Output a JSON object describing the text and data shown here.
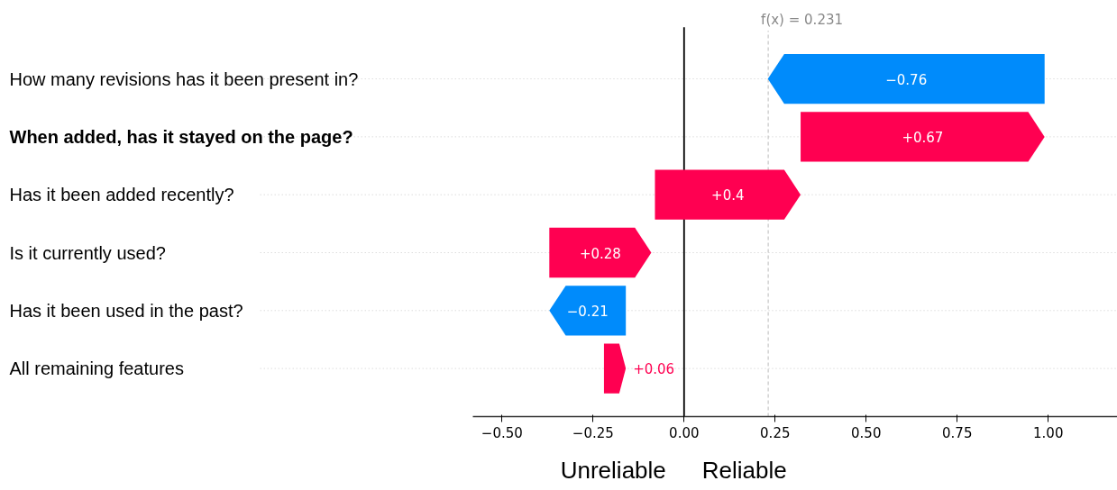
{
  "chart_data": {
    "type": "bar",
    "orientation": "horizontal",
    "categories": [
      "How many revisions has it been present in?",
      "When added, has it stayed on the page?",
      "Has it been added recently?",
      "Is it currently used?",
      "Has it been used in the past?",
      "All remaining features"
    ],
    "values": [
      -0.76,
      0.67,
      0.4,
      0.28,
      -0.21,
      0.06
    ],
    "base": [
      0.99,
      0.32,
      -0.08,
      -0.37,
      -0.16,
      -0.22
    ],
    "colors": [
      "#008bfb",
      "#ff0051",
      "#ff0051",
      "#ff0051",
      "#008bfb",
      "#ff0051"
    ],
    "value_labels": [
      "−0.76",
      "+0.67",
      "+0.4",
      "+0.28",
      "−0.21",
      "+0.06"
    ],
    "xlim": [
      -0.58,
      1.19
    ],
    "xticks": [
      {
        "value": -0.5,
        "label": "−0.50"
      },
      {
        "value": -0.25,
        "label": "−0.25"
      },
      {
        "value": 0,
        "label": "0.00"
      },
      {
        "value": 0.25,
        "label": "0.25"
      },
      {
        "value": 0.5,
        "label": "0.50"
      },
      {
        "value": 0.75,
        "label": "0.75"
      },
      {
        "value": 1,
        "label": "1.00"
      }
    ],
    "ref_lines": [
      {
        "axis": "x",
        "value": 0,
        "label": null,
        "color": "#000000",
        "line_style": "solid"
      },
      {
        "axis": "x",
        "value": 0.231,
        "label": "f(x) = 0.231",
        "color": "#bbbbbb",
        "line_style": "dashed"
      }
    ],
    "annotations": [
      "Unreliable",
      "Reliable"
    ],
    "grid": "y"
  }
}
